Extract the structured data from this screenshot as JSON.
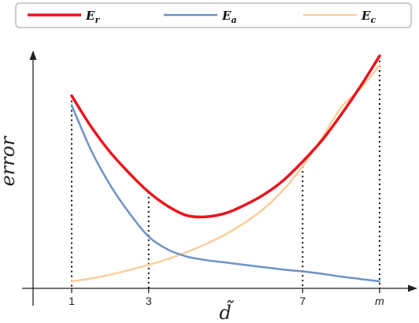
{
  "chart_data": {
    "type": "line",
    "xlabel": "d̃",
    "ylabel": "error",
    "x_ticks": [
      "1",
      "3",
      "7",
      "m"
    ],
    "x_tick_positions": [
      1,
      3,
      7,
      9
    ],
    "xlim": [
      0,
      9.9
    ],
    "ylim": [
      0,
      10
    ],
    "legend_position": "top",
    "series": [
      {
        "name": "E_r",
        "color": "#e8141e",
        "x": [
          1,
          1.5,
          2,
          2.5,
          3,
          3.5,
          4,
          4.5,
          5,
          5.5,
          6,
          6.5,
          7,
          7.5,
          8,
          8.5,
          9
        ],
        "y": [
          8.2,
          6.9,
          5.8,
          4.9,
          4.1,
          3.5,
          3.1,
          3.05,
          3.2,
          3.55,
          4.0,
          4.6,
          5.4,
          6.3,
          7.4,
          8.6,
          9.9
        ]
      },
      {
        "name": "E_a",
        "color": "#6e93c6",
        "x": [
          1,
          1.5,
          2,
          2.5,
          3,
          3.5,
          4,
          4.5,
          5,
          5.5,
          6,
          6.5,
          7,
          7.5,
          8,
          8.5,
          9
        ],
        "y": [
          7.8,
          5.9,
          4.4,
          3.2,
          2.2,
          1.65,
          1.35,
          1.2,
          1.1,
          1.0,
          0.9,
          0.8,
          0.72,
          0.62,
          0.5,
          0.4,
          0.3
        ]
      },
      {
        "name": "E_c",
        "color": "#f9cf9c",
        "x": [
          1,
          1.5,
          2,
          2.5,
          3,
          3.5,
          4,
          4.5,
          5,
          5.5,
          6,
          6.5,
          7,
          7.5,
          8,
          8.5,
          9
        ],
        "y": [
          0.3,
          0.42,
          0.58,
          0.78,
          1.0,
          1.25,
          1.55,
          1.9,
          2.3,
          2.8,
          3.4,
          4.2,
          5.2,
          6.4,
          7.7,
          8.5,
          9.5
        ]
      }
    ],
    "guide_lines_x": [
      1,
      3,
      7,
      9
    ]
  }
}
